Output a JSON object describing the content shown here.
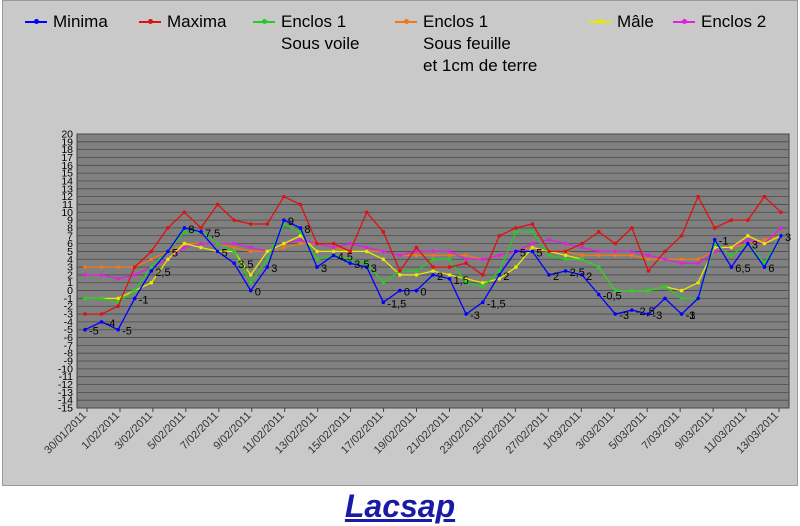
{
  "caption": "Lacsap",
  "chart_data": {
    "type": "line",
    "ylim": [
      -15,
      20
    ],
    "grid": true,
    "legend_position": "top",
    "x_tick_labels": [
      "30/01/2011",
      "1/02/2011",
      "3/02/2011",
      "5/02/2011",
      "7/02/2011",
      "9/02/2011",
      "11/02/2011",
      "13/02/2011",
      "15/02/2011",
      "17/02/2011",
      "19/02/2011",
      "21/02/2011",
      "23/02/2011",
      "25/02/2011",
      "27/02/2011",
      "1/03/2011",
      "3/03/2011",
      "5/03/2011",
      "7/03/2011",
      "9/03/2011",
      "11/03/2011",
      "13/03/2011"
    ],
    "y_tick_labels": [
      "20",
      "19",
      "18",
      "17",
      "16",
      "15",
      "14",
      "13",
      "12",
      "11",
      "10",
      "9",
      "8",
      "7",
      "6",
      "5",
      "4",
      "3",
      "2",
      "1",
      "0",
      "-1",
      "-2",
      "-3",
      "-4",
      "-5",
      "-6",
      "-7",
      "-8",
      "-9",
      "-10",
      "-11",
      "-12",
      "-13",
      "-14",
      "-15"
    ],
    "series": [
      {
        "name": "Minima",
        "color": "#0000ff",
        "marker": "#0000ff",
        "values": [
          -5,
          -4,
          -5,
          -1,
          2.5,
          5,
          8,
          7.5,
          5,
          3.5,
          0,
          3,
          9,
          8,
          3,
          4.5,
          3.5,
          3,
          -1.5,
          0,
          0,
          2,
          1.5,
          -3,
          -1.5,
          2,
          5,
          5,
          2,
          2.5,
          2,
          -0.5,
          -3,
          -2.5,
          -3,
          -1,
          -3,
          -1,
          6.5,
          3,
          6,
          3,
          7
        ],
        "labels": [
          [
            "-5",
            0
          ],
          [
            "-4",
            1
          ],
          [
            "-5",
            2
          ],
          [
            "-1",
            3
          ],
          [
            "2,5",
            4
          ],
          [
            "5",
            5
          ],
          [
            "8",
            6
          ],
          [
            "7,5",
            7
          ],
          [
            "5",
            8
          ],
          [
            "3,5",
            9
          ],
          [
            "0",
            10
          ],
          [
            "3",
            11
          ],
          [
            "9",
            12
          ],
          [
            "8",
            13
          ],
          [
            "3",
            14
          ],
          [
            "4,5",
            15
          ],
          [
            "3,5",
            16
          ],
          [
            "3",
            17
          ],
          [
            "-1,5",
            18
          ],
          [
            "0",
            19
          ],
          [
            "0",
            20
          ],
          [
            "2",
            21
          ],
          [
            "1,5",
            22
          ],
          [
            "-3",
            23
          ],
          [
            "-1,5",
            24
          ],
          [
            "2",
            25
          ],
          [
            "5",
            26
          ],
          [
            "5",
            27
          ],
          [
            "2",
            28
          ],
          [
            "2,5",
            29
          ],
          [
            "2",
            30
          ],
          [
            "-0,5",
            31
          ],
          [
            "-3",
            32
          ],
          [
            "-2,5",
            33
          ],
          [
            "-3",
            34
          ],
          [
            "-1",
            36
          ],
          [
            "-3",
            36
          ],
          [
            "-1",
            38
          ],
          [
            "6,5",
            39
          ],
          [
            "3",
            40
          ],
          [
            "6",
            41
          ],
          [
            "3",
            42
          ],
          [
            "7",
            43
          ]
        ]
      },
      {
        "name": "Maxima",
        "color": "#e01010",
        "marker": "#e01010",
        "values": [
          -3,
          -3,
          -2,
          3,
          5,
          8,
          10,
          8,
          11,
          9,
          8.5,
          8.5,
          12,
          11,
          6,
          6,
          5,
          10,
          7.5,
          2.5,
          5.5,
          3,
          3,
          3.5,
          2,
          7,
          8,
          8.5,
          5,
          5,
          6,
          7.5,
          6,
          8,
          2.5,
          5,
          7,
          12,
          8,
          9,
          9,
          12,
          10
        ]
      },
      {
        "name": "Enclos 1 Sous voile",
        "color": "#20d020",
        "marker": "#20d020",
        "values": [
          -1,
          -1,
          -1.5,
          0,
          3,
          5,
          7.5,
          7.5,
          6,
          5,
          1,
          4,
          8.5,
          7.5,
          4,
          4.5,
          4,
          3.5,
          1,
          2.5,
          2.5,
          4,
          4,
          1,
          0.5,
          2.5,
          7.5,
          7.5,
          4.5,
          4,
          4,
          3,
          0,
          0,
          0,
          0.5,
          -1,
          -1,
          6,
          4.5,
          6,
          3.5,
          7
        ]
      },
      {
        "name": "Enclos 1 Sous feuille et 1cm de terre",
        "color": "#f07818",
        "marker": "#f07818",
        "values": [
          3,
          3,
          3,
          3,
          4,
          5,
          6,
          6,
          6,
          5.5,
          5,
          5,
          5.5,
          6,
          6,
          5.5,
          5,
          5,
          5,
          4.5,
          4.5,
          4.5,
          4.5,
          4.5,
          4,
          4.5,
          5,
          5.5,
          5,
          5,
          4.5,
          4.5,
          4.5,
          4.5,
          4,
          4,
          4,
          4,
          5,
          5.5,
          6,
          6.5,
          7
        ]
      },
      {
        "name": "Mâle",
        "color": "#e8e800",
        "marker": "#e8e800",
        "values": [
          -1,
          -1,
          -1,
          0,
          1,
          4,
          6,
          5.5,
          5,
          5,
          2,
          5,
          6,
          7,
          5,
          5,
          5,
          5,
          4,
          2,
          2,
          2.5,
          2,
          1.5,
          1,
          1.5,
          3,
          5.5,
          5,
          4.5,
          4,
          3,
          0,
          0,
          0,
          0.5,
          0,
          1,
          5.5,
          5.5,
          7,
          6,
          7
        ]
      },
      {
        "name": "Enclos 2",
        "color": "#e020e0",
        "marker": "#e020e0",
        "values": [
          2,
          2,
          1.5,
          2,
          3,
          4,
          5.5,
          6,
          6,
          6,
          5.5,
          5,
          6,
          6.5,
          6,
          5.5,
          6,
          5.5,
          5,
          4.5,
          5,
          5,
          5,
          4,
          4,
          4.5,
          5,
          6,
          6.5,
          6,
          5.5,
          5,
          5,
          5,
          4.5,
          4,
          3.5,
          3.5,
          5,
          5.5,
          6.5,
          6,
          8
        ]
      }
    ]
  },
  "legend": [
    {
      "lines": [
        "Minima"
      ],
      "color": "#0000ff"
    },
    {
      "lines": [
        "Maxima"
      ],
      "color": "#e01010"
    },
    {
      "lines": [
        "Enclos 1",
        "Sous voile"
      ],
      "color": "#20d020"
    },
    {
      "lines": [
        "Enclos 1",
        "Sous feuille",
        "et 1cm de terre"
      ],
      "color": "#f07818"
    },
    {
      "lines": [
        "Mâle"
      ],
      "color": "#e8e800"
    },
    {
      "lines": [
        "Enclos 2"
      ],
      "color": "#e020e0"
    }
  ]
}
